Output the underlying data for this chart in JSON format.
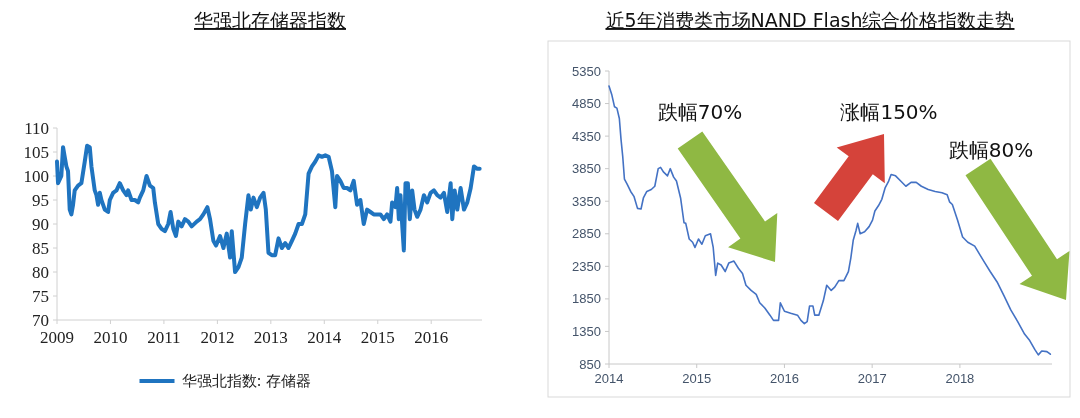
{
  "chart_data": [
    {
      "type": "line",
      "title": "华强北存储器指数",
      "legend": "bottom",
      "xlim": [
        2009,
        2016.95
      ],
      "xticks": [
        2009,
        2010,
        2011,
        2012,
        2013,
        2014,
        2015,
        2016
      ],
      "ylim": [
        70,
        110
      ],
      "yticks": [
        70,
        75,
        80,
        85,
        90,
        95,
        100,
        105,
        110
      ],
      "x": [
        2009.0,
        2009.019,
        2009.081,
        2009.113,
        2009.144,
        2009.175,
        2009.206,
        2009.238,
        2009.269,
        2009.3,
        2009.331,
        2009.394,
        2009.456,
        2009.519,
        2009.563,
        2009.613,
        2009.644,
        2009.706,
        2009.738,
        2009.769,
        2009.8,
        2009.831,
        2009.863,
        2009.894,
        2009.956,
        2009.988,
        2010.05,
        2010.113,
        2010.175,
        2010.238,
        2010.3,
        2010.331,
        2010.394,
        2010.456,
        2010.519,
        2010.55,
        2010.613,
        2010.675,
        2010.738,
        2010.8,
        2010.831,
        2010.894,
        2010.956,
        2011.019,
        2011.081,
        2011.125,
        2011.175,
        2011.225,
        2011.269,
        2011.331,
        2011.394,
        2011.456,
        2011.519,
        2011.613,
        2011.675,
        2011.738,
        2011.813,
        2011.863,
        2011.925,
        2011.975,
        2012.05,
        2012.113,
        2012.175,
        2012.238,
        2012.269,
        2012.331,
        2012.394,
        2012.456,
        2012.519,
        2012.581,
        2012.625,
        2012.675,
        2012.738,
        2012.8,
        2012.863,
        2012.906,
        2012.956,
        2013.019,
        2013.081,
        2013.144,
        2013.206,
        2013.269,
        2013.331,
        2013.394,
        2013.456,
        2013.519,
        2013.581,
        2013.644,
        2013.706,
        2013.769,
        2013.831,
        2013.894,
        2013.956,
        2014.019,
        2014.081,
        2014.144,
        2014.206,
        2014.238,
        2014.3,
        2014.363,
        2014.425,
        2014.488,
        2014.55,
        2014.613,
        2014.675,
        2014.738,
        2014.8,
        2014.863,
        2014.925,
        2014.988,
        2015.05,
        2015.113,
        2015.175,
        2015.238,
        2015.269,
        2015.331,
        2015.363,
        2015.394,
        2015.425,
        2015.456,
        2015.488,
        2015.519,
        2015.563,
        2015.6,
        2015.644,
        2015.688,
        2015.738,
        2015.8,
        2015.863,
        2015.925,
        2015.988,
        2016.05,
        2016.113,
        2016.175,
        2016.238,
        2016.3,
        2016.363,
        2016.394,
        2016.438,
        2016.488,
        2016.55,
        2016.613,
        2016.675,
        2016.738,
        2016.8,
        2016.863,
        2016.906
      ],
      "series": [
        {
          "name": "华强北指数: 存储器",
          "color": "#1f74c0",
          "values": [
            103,
            98.5,
            100,
            106,
            104,
            102,
            101,
            93,
            92,
            94,
            97,
            98,
            98.5,
            103,
            106.3,
            106,
            102,
            97,
            96,
            94,
            96.5,
            95,
            94,
            93,
            92.5,
            95,
            96.5,
            97,
            98.5,
            97,
            96,
            97,
            95,
            95,
            94.5,
            95.5,
            97,
            100,
            98,
            97.5,
            94.5,
            90,
            89,
            88.5,
            90,
            92.5,
            89,
            87.5,
            90.5,
            89.5,
            91,
            90.5,
            89.5,
            90.5,
            91,
            92,
            93.5,
            91,
            86.5,
            85.5,
            87.5,
            85,
            88,
            83,
            88.5,
            80,
            81,
            83,
            90,
            96,
            93,
            95.5,
            93.5,
            95.5,
            96.5,
            93,
            84,
            83.5,
            83.5,
            87,
            85,
            86,
            85,
            86.5,
            88,
            90,
            90,
            92,
            100.5,
            102,
            103,
            104.3,
            104,
            104.3,
            104,
            101,
            93.5,
            100,
            99,
            97.5,
            97.5,
            97,
            99,
            94,
            95,
            90,
            93,
            92.5,
            92,
            92,
            92,
            91,
            92,
            90.5,
            94.5,
            93.5,
            97.5,
            91,
            96,
            90,
            84.5,
            98.5,
            98.5,
            91,
            97,
            93,
            91.5,
            93,
            96,
            94.5,
            96.5,
            97,
            96,
            95.5,
            96.5,
            92.5,
            98.5,
            91,
            97,
            93,
            97.5,
            93,
            94.5,
            97.5,
            102,
            101.5,
            101.5
          ]
        }
      ]
    },
    {
      "type": "line",
      "title": "近5年消费类市场NAND Flash综合价格指数走势",
      "xlim": [
        2014,
        2019.05
      ],
      "xticks": [
        2014,
        2015,
        2016,
        2017,
        2018
      ],
      "ylim": [
        850,
        5350
      ],
      "yticks": [
        850,
        1350,
        1850,
        2350,
        2850,
        3350,
        3850,
        4350,
        4850,
        5350
      ],
      "annotations": [
        "跌幅70%",
        "涨幅150%",
        "跌幅80%"
      ],
      "x": [
        2014.0,
        2014.031,
        2014.063,
        2014.09,
        2014.118,
        2014.137,
        2014.157,
        2014.176,
        2014.208,
        2014.247,
        2014.286,
        2014.325,
        2014.365,
        2014.392,
        2014.431,
        2014.482,
        2014.522,
        2014.561,
        2014.588,
        2014.62,
        2014.667,
        2014.698,
        2014.737,
        2014.769,
        2014.816,
        2014.855,
        2014.875,
        2014.914,
        2014.953,
        2014.98,
        2015.02,
        2015.059,
        2015.098,
        2015.157,
        2015.188,
        2015.216,
        2015.239,
        2015.278,
        2015.325,
        2015.365,
        2015.424,
        2015.475,
        2015.522,
        2015.561,
        2015.62,
        2015.678,
        2015.718,
        2015.776,
        2015.835,
        2015.875,
        2015.933,
        2015.953,
        2016.0,
        2016.071,
        2016.149,
        2016.188,
        2016.227,
        2016.259,
        2016.286,
        2016.325,
        2016.345,
        2016.392,
        2016.443,
        2016.482,
        2016.533,
        2016.573,
        2016.62,
        2016.678,
        2016.729,
        2016.757,
        2016.784,
        2016.816,
        2016.835,
        2016.863,
        2016.914,
        2016.965,
        2017.004,
        2017.031,
        2017.071,
        2017.11,
        2017.149,
        2017.188,
        2017.216,
        2017.267,
        2017.325,
        2017.384,
        2017.443,
        2017.502,
        2017.561,
        2017.639,
        2017.718,
        2017.796,
        2017.855,
        2017.882,
        2017.914,
        2017.973,
        2018.031,
        2018.09,
        2018.169,
        2018.227,
        2018.286,
        2018.345,
        2018.424,
        2018.502,
        2018.58,
        2018.659,
        2018.737,
        2018.796,
        2018.855,
        2018.894,
        2018.933,
        2018.992,
        2019.031
      ],
      "series": [
        {
          "color": "#4472c4",
          "values": [
            5120,
            4990,
            4800,
            4780,
            4620,
            4300,
            4030,
            3690,
            3610,
            3500,
            3420,
            3240,
            3230,
            3400,
            3500,
            3530,
            3580,
            3850,
            3870,
            3800,
            3740,
            3850,
            3720,
            3660,
            3400,
            3020,
            3010,
            2770,
            2720,
            2640,
            2770,
            2690,
            2820,
            2850,
            2640,
            2210,
            2400,
            2370,
            2270,
            2400,
            2430,
            2320,
            2240,
            2060,
            1980,
            1920,
            1790,
            1710,
            1600,
            1520,
            1520,
            1790,
            1660,
            1630,
            1600,
            1520,
            1470,
            1500,
            1740,
            1740,
            1600,
            1600,
            1820,
            2060,
            1980,
            2030,
            2130,
            2130,
            2270,
            2480,
            2750,
            2900,
            3010,
            2850,
            2880,
            2960,
            3060,
            3200,
            3280,
            3380,
            3560,
            3660,
            3760,
            3740,
            3660,
            3580,
            3640,
            3640,
            3580,
            3530,
            3500,
            3480,
            3450,
            3340,
            3300,
            3060,
            2800,
            2720,
            2660,
            2530,
            2400,
            2270,
            2110,
            1900,
            1680,
            1500,
            1310,
            1210,
            1070,
            990,
            1050,
            1040,
            1000
          ]
        }
      ]
    }
  ]
}
